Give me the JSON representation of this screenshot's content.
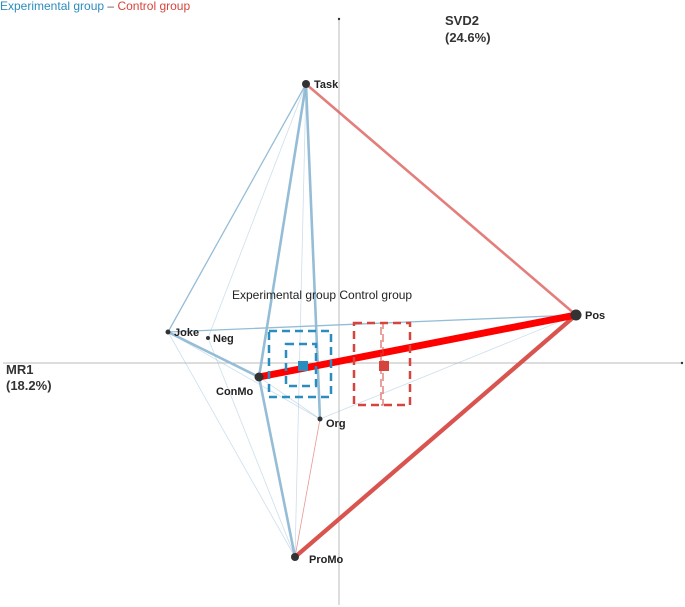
{
  "legend": {
    "experimental": "Experimental group",
    "separator": "–",
    "control": "Control group"
  },
  "axes": {
    "y_name": "SVD2",
    "y_pct": "(24.6%)",
    "x_name": "MR1",
    "x_pct": "(18.2%)"
  },
  "center_label": "Experimental group Control group",
  "colors": {
    "experimental": "#2b8cbe",
    "control": "#d6453d",
    "experimental_edge": "#8fb9d4",
    "control_edge": "#d9534f",
    "control_strong": "#ff0000",
    "node": "#333333",
    "axis": "#bbbbbb"
  },
  "nodes": [
    {
      "id": "Task",
      "label": "Task"
    },
    {
      "id": "Pos",
      "label": "Pos"
    },
    {
      "id": "Joke",
      "label": "Joke"
    },
    {
      "id": "Neg",
      "label": "Neg"
    },
    {
      "id": "ConMo",
      "label": "ConMo"
    },
    {
      "id": "Org",
      "label": "Org"
    },
    {
      "id": "ProMo",
      "label": "ProMo"
    }
  ],
  "edges": [
    {
      "from": "Task",
      "to": "Joke",
      "group": "experimental",
      "strength": "weak"
    },
    {
      "from": "Task",
      "to": "ConMo",
      "group": "experimental",
      "strength": "medium"
    },
    {
      "from": "Task",
      "to": "Org",
      "group": "experimental",
      "strength": "medium"
    },
    {
      "from": "Task",
      "to": "Neg",
      "group": "experimental",
      "strength": "faint"
    },
    {
      "from": "Task",
      "to": "ProMo",
      "group": "experimental",
      "strength": "faint"
    },
    {
      "from": "Joke",
      "to": "Pos",
      "group": "experimental",
      "strength": "weak"
    },
    {
      "from": "Joke",
      "to": "ConMo",
      "group": "experimental",
      "strength": "medium"
    },
    {
      "from": "Joke",
      "to": "ProMo",
      "group": "experimental",
      "strength": "faint"
    },
    {
      "from": "Joke",
      "to": "Org",
      "group": "experimental",
      "strength": "faint"
    },
    {
      "from": "ConMo",
      "to": "ProMo",
      "group": "experimental",
      "strength": "medium"
    },
    {
      "from": "Neg",
      "to": "ProMo",
      "group": "experimental",
      "strength": "faint"
    },
    {
      "from": "ConMo",
      "to": "Org",
      "group": "experimental",
      "strength": "faint"
    },
    {
      "from": "Pos",
      "to": "Org",
      "group": "experimental",
      "strength": "faint"
    },
    {
      "from": "Task",
      "to": "Pos",
      "group": "control",
      "strength": "medium"
    },
    {
      "from": "Pos",
      "to": "ProMo",
      "group": "control",
      "strength": "strong"
    },
    {
      "from": "ConMo",
      "to": "Pos",
      "group": "control",
      "strength": "strongest"
    },
    {
      "from": "Org",
      "to": "ProMo",
      "group": "control",
      "strength": "faint"
    }
  ]
}
